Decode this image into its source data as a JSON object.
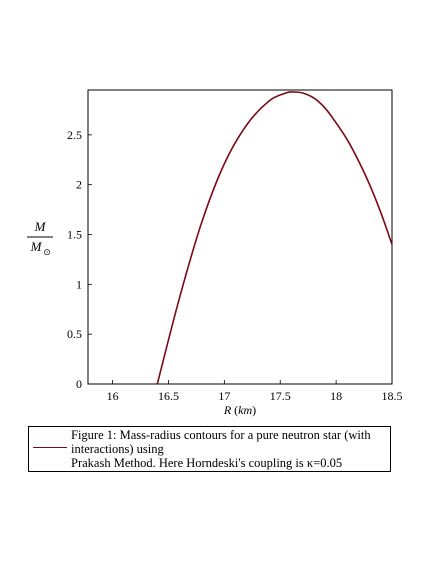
{
  "chart_data": {
    "type": "line",
    "xlabel": "R (km)",
    "ylabel": "M / M⊙",
    "xlim": [
      15.78,
      18.5
    ],
    "ylim": [
      0,
      2.95
    ],
    "x_ticks": [
      "16",
      "16.5",
      "17",
      "17.5",
      "18",
      "18.5"
    ],
    "y_ticks": [
      "0",
      "0.5",
      "1",
      "1.5",
      "2",
      "2.5"
    ],
    "series": [
      {
        "color": "#7a0a14",
        "x": [
          16.4,
          16.6,
          16.8,
          17.0,
          17.2,
          17.4,
          17.55,
          17.62,
          17.7,
          17.8,
          17.9,
          18.0,
          18.1,
          18.2,
          18.3,
          18.4,
          18.5
        ],
        "y": [
          0.0,
          0.87,
          1.63,
          2.21,
          2.6,
          2.84,
          2.92,
          2.93,
          2.92,
          2.87,
          2.77,
          2.62,
          2.45,
          2.24,
          2.0,
          1.72,
          1.4
        ]
      }
    ],
    "grid": false,
    "legend": {
      "position": "bottom",
      "lines": [
        "Figure 1: Mass-radius contours for a pure neutron star (with",
        "interactions) using",
        "Prakash Method. Here Horndeski's coupling is κ=0.05"
      ]
    }
  }
}
